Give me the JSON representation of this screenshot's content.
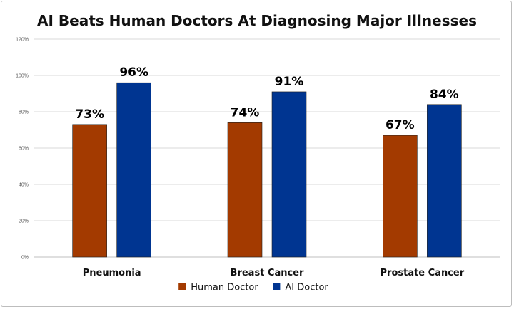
{
  "chart_data": {
    "type": "bar",
    "title": "AI Beats Human Doctors At Diagnosing Major Illnesses",
    "categories": [
      "Pneumonia",
      "Breast Cancer",
      "Prostate Cancer"
    ],
    "series": [
      {
        "name": "Human Doctor",
        "values": [
          73,
          74,
          67
        ],
        "labels": [
          "73%",
          "74%",
          "67%"
        ],
        "color": "#a33a00"
      },
      {
        "name": "AI Doctor",
        "values": [
          96,
          91,
          84
        ],
        "labels": [
          "96%",
          "91%",
          "84%"
        ],
        "color": "#003591"
      }
    ],
    "ylim": [
      0,
      120
    ],
    "yticks": [
      0,
      20,
      40,
      60,
      80,
      100,
      120
    ],
    "ytick_labels": [
      "0%",
      "20%",
      "40%",
      "60%",
      "80%",
      "100%",
      "120%"
    ],
    "grid": true,
    "legend": "bottom"
  }
}
